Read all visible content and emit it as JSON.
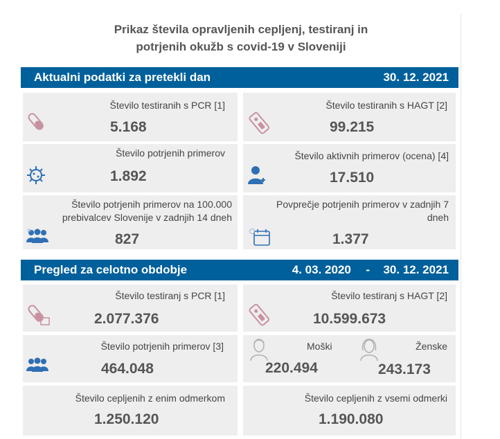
{
  "header": {
    "title_line1": "Prikaz števila opravljenih cepljenj, testiranj in",
    "title_line2": "potrjenih okužb s covid-19 v Sloveniji"
  },
  "daily": {
    "band_label": "Aktualni podatki za pretekli dan",
    "band_date": "30. 12. 2021",
    "pcr": {
      "label": "Število testiranih s PCR [1]",
      "value": "5.168"
    },
    "hagt": {
      "label": "Število testiranih s HAGT [2]",
      "value": "99.215"
    },
    "confirmed": {
      "label": "Število potrjenih primerov",
      "value": "1.892"
    },
    "active": {
      "label": "Število aktivnih primerov (ocena) [4]",
      "value": "17.510"
    },
    "per100k": {
      "label_line1": "Število potrjenih primerov na 100.000",
      "label_line2": "prebivalcev Slovenije v zadnjih 14 dneh",
      "value": "827"
    },
    "avg7": {
      "label_line1": "Povprečje potrjenih primerov v zadnjih 7",
      "label_line2": "dneh",
      "value": "1.377"
    }
  },
  "overall": {
    "band_label": "Pregled za celotno obdobje",
    "band_date_from": "4. 03. 2020",
    "band_dash": "-",
    "band_date_to": "30. 12. 2021",
    "pcr": {
      "label": "Število testiranj s PCR [1]",
      "value": "2.077.376"
    },
    "hagt": {
      "label": "Število testiranj s HAGT [2]",
      "value": "10.599.673"
    },
    "confirmed": {
      "label": "Število potrjenih primerov [3]",
      "value": "464.048"
    },
    "male": {
      "label": "Moški",
      "value": "220.494"
    },
    "female": {
      "label": "Ženske",
      "value": "243.173"
    },
    "vacc_one": {
      "label": "Število cepljenih z enim odmerkom",
      "value": "1.250.120"
    },
    "vacc_all": {
      "label": "Število cepljenih z vsemi odmerki",
      "value": "1.190.080"
    }
  },
  "colors": {
    "band": "#00609c",
    "card": "#eeeeee",
    "icon_blue": "#2f6fb5",
    "icon_pink": "#c8919f"
  },
  "icons": [
    "test-tube-icon",
    "antigen-test-icon",
    "virus-icon",
    "person-icon",
    "people-icon",
    "calendar-icon",
    "male-icon",
    "female-icon"
  ]
}
